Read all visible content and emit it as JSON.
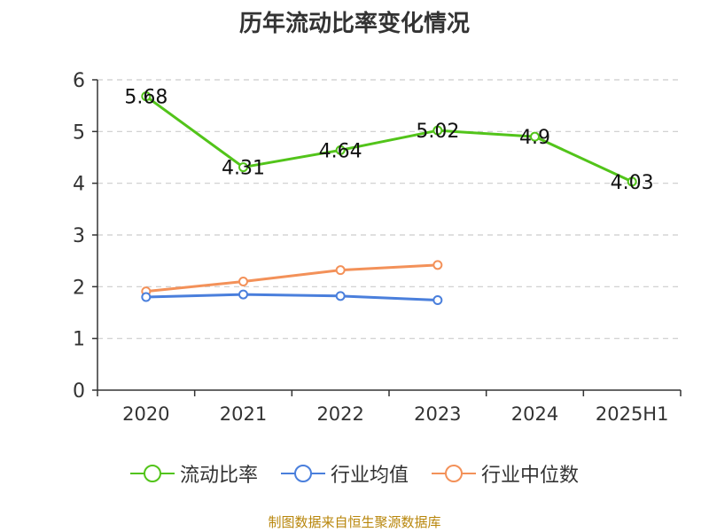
{
  "title": "历年流动比率变化情况",
  "source": "制图数据来自恒生聚源数据库",
  "chart_data": {
    "type": "line",
    "categories": [
      "2020",
      "2021",
      "2022",
      "2023",
      "2024",
      "2025H1"
    ],
    "ylim": [
      0,
      6
    ],
    "yticks": [
      "0",
      "1",
      "2",
      "3",
      "4",
      "5",
      "6"
    ],
    "grid": true,
    "legend_position": "bottom",
    "series": [
      {
        "name": "流动比率",
        "color": "#52c41a",
        "values": [
          5.68,
          4.31,
          4.64,
          5.02,
          4.9,
          4.03
        ],
        "labels": [
          "5.68",
          "4.31",
          "4.64",
          "5.02",
          "4.9",
          "4.03"
        ]
      },
      {
        "name": "行业均值",
        "color": "#4a7fdc",
        "values": [
          1.8,
          1.85,
          1.82,
          1.74,
          null,
          null
        ]
      },
      {
        "name": "行业中位数",
        "color": "#f39159",
        "values": [
          1.91,
          2.1,
          2.32,
          2.42,
          null,
          null
        ]
      }
    ]
  }
}
